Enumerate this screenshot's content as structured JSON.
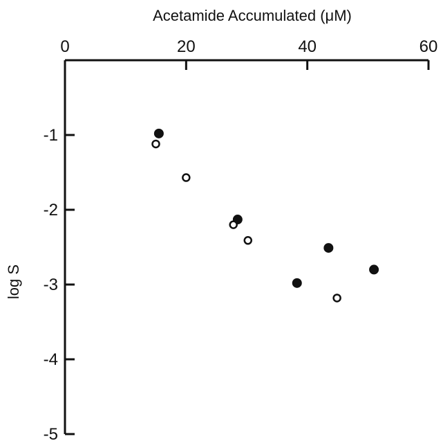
{
  "chart_data": {
    "type": "scatter",
    "title": "",
    "xlabel": "Acetamide Accumulated (μM)",
    "ylabel": "log S",
    "xlim": [
      0,
      60
    ],
    "ylim": [
      -5,
      0
    ],
    "x_ticks": [
      0,
      20,
      40,
      60
    ],
    "x_tick_labels": [
      "0",
      "20",
      "40",
      "60"
    ],
    "y_ticks": [
      -1,
      -2,
      -3,
      -4,
      -5
    ],
    "y_tick_labels": [
      "-1",
      "-2",
      "-3",
      "-4",
      "-5"
    ],
    "x_axis_position": "top",
    "grid": false,
    "legend": null,
    "series": [
      {
        "marker": "filled-circle",
        "color": "#111111",
        "points": [
          {
            "x": 15.5,
            "y": -0.98
          },
          {
            "x": 28.5,
            "y": -2.13
          },
          {
            "x": 38.3,
            "y": -2.98
          },
          {
            "x": 43.5,
            "y": -2.51
          },
          {
            "x": 51.0,
            "y": -2.8
          }
        ]
      },
      {
        "marker": "open-circle",
        "color": "#111111",
        "points": [
          {
            "x": 15.0,
            "y": -1.12
          },
          {
            "x": 20.0,
            "y": -1.57
          },
          {
            "x": 27.8,
            "y": -2.2
          },
          {
            "x": 30.2,
            "y": -2.41
          },
          {
            "x": 44.9,
            "y": -3.18
          }
        ]
      }
    ]
  }
}
